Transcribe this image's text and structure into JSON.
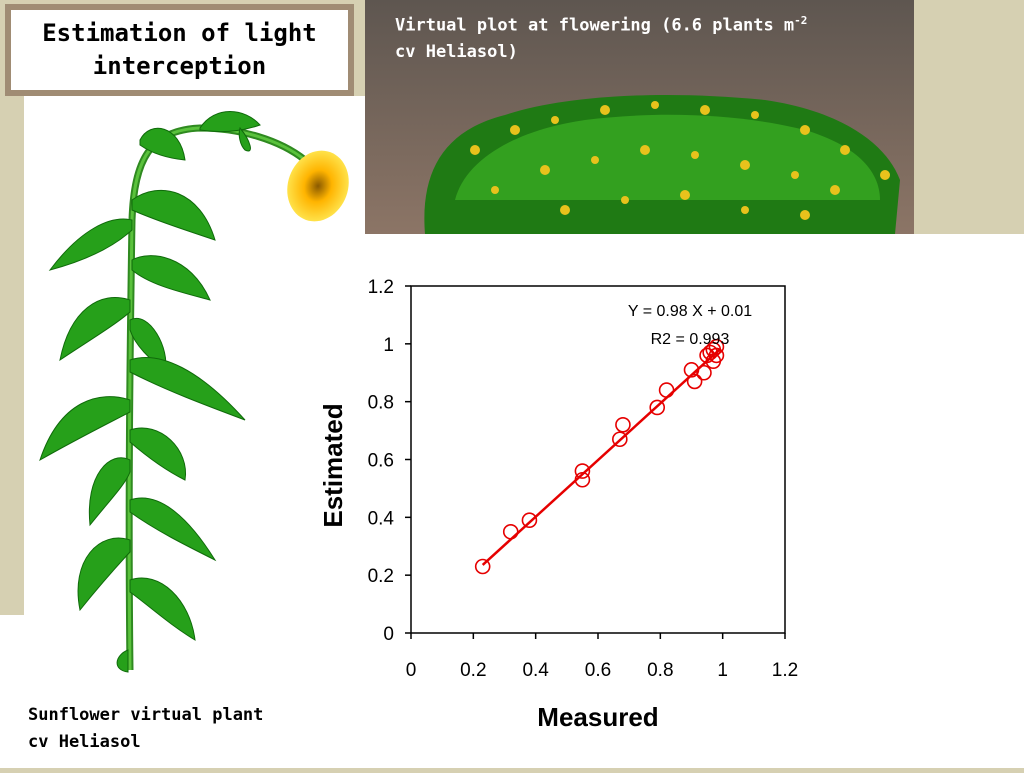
{
  "slide": {
    "title": "Estimation of light interception",
    "plot_caption_line1": "Virtual plot at flowering (6.6 plants m",
    "plot_caption_sup": "-2",
    "plot_caption_line2": "cv Heliasol)",
    "plant_caption_line1": "Sunflower virtual plant",
    "plant_caption_line2": "cv Heliasol"
  },
  "chart_data": {
    "type": "scatter",
    "xlabel": "Measured",
    "ylabel": "Estimated",
    "xlim": [
      0,
      1.2
    ],
    "ylim": [
      0,
      1.2
    ],
    "x_ticks": [
      "0",
      "0.2",
      "0.4",
      "0.6",
      "0.8",
      "1",
      "1.2"
    ],
    "y_ticks": [
      "0",
      "0.2",
      "0.4",
      "0.6",
      "0.8",
      "1",
      "1.2"
    ],
    "grid": false,
    "points": [
      {
        "x": 0.23,
        "y": 0.23
      },
      {
        "x": 0.32,
        "y": 0.35
      },
      {
        "x": 0.38,
        "y": 0.39
      },
      {
        "x": 0.55,
        "y": 0.53
      },
      {
        "x": 0.55,
        "y": 0.56
      },
      {
        "x": 0.67,
        "y": 0.67
      },
      {
        "x": 0.68,
        "y": 0.72
      },
      {
        "x": 0.79,
        "y": 0.78
      },
      {
        "x": 0.82,
        "y": 0.84
      },
      {
        "x": 0.9,
        "y": 0.91
      },
      {
        "x": 0.91,
        "y": 0.87
      },
      {
        "x": 0.94,
        "y": 0.9
      },
      {
        "x": 0.95,
        "y": 0.96
      },
      {
        "x": 0.96,
        "y": 0.97
      },
      {
        "x": 0.97,
        "y": 0.94
      },
      {
        "x": 0.98,
        "y": 0.96
      },
      {
        "x": 0.98,
        "y": 0.99
      },
      {
        "x": 0.97,
        "y": 0.98
      }
    ],
    "fit_line": {
      "slope": 0.98,
      "intercept": 0.01,
      "x_range": [
        0.23,
        0.99
      ]
    },
    "annotation_line1": "Y = 0.98 X + 0.01",
    "annotation_line2": "R2 = 0.993",
    "point_color": "#e60000",
    "line_color": "#e60000"
  }
}
